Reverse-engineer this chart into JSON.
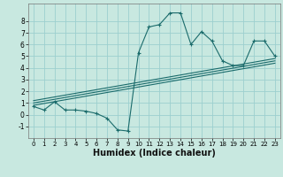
{
  "title": "",
  "xlabel": "Humidex (Indice chaleur)",
  "background_color": "#c8e8e0",
  "line_color": "#1a6b6b",
  "grid_color": "#9ccfcf",
  "xlim": [
    -0.5,
    23.5
  ],
  "ylim": [
    -2.0,
    9.5
  ],
  "xticks": [
    0,
    1,
    2,
    3,
    4,
    5,
    6,
    7,
    8,
    9,
    10,
    11,
    12,
    13,
    14,
    15,
    16,
    17,
    18,
    19,
    20,
    21,
    22,
    23
  ],
  "yticks": [
    -1,
    0,
    1,
    2,
    3,
    4,
    5,
    6,
    7,
    8
  ],
  "main_data_x": [
    0,
    1,
    2,
    3,
    4,
    5,
    6,
    7,
    8,
    9,
    10,
    11,
    12,
    13,
    14,
    15,
    16,
    17,
    18,
    19,
    20,
    21,
    22,
    23
  ],
  "main_data_y": [
    0.7,
    0.4,
    1.1,
    0.4,
    0.4,
    0.3,
    0.1,
    -0.3,
    -1.3,
    -1.4,
    5.3,
    7.5,
    7.7,
    8.7,
    8.7,
    6.0,
    7.1,
    6.3,
    4.6,
    4.2,
    4.2,
    6.3,
    6.3,
    5.0
  ],
  "reg_lines": [
    {
      "x": [
        0,
        23
      ],
      "y": [
        0.8,
        4.4
      ]
    },
    {
      "x": [
        0,
        23
      ],
      "y": [
        1.0,
        4.6
      ]
    },
    {
      "x": [
        0,
        23
      ],
      "y": [
        1.2,
        4.8
      ]
    }
  ],
  "xlabel_fontsize": 7,
  "tick_fontsize": 5,
  "linewidth": 0.8,
  "markersize": 3
}
